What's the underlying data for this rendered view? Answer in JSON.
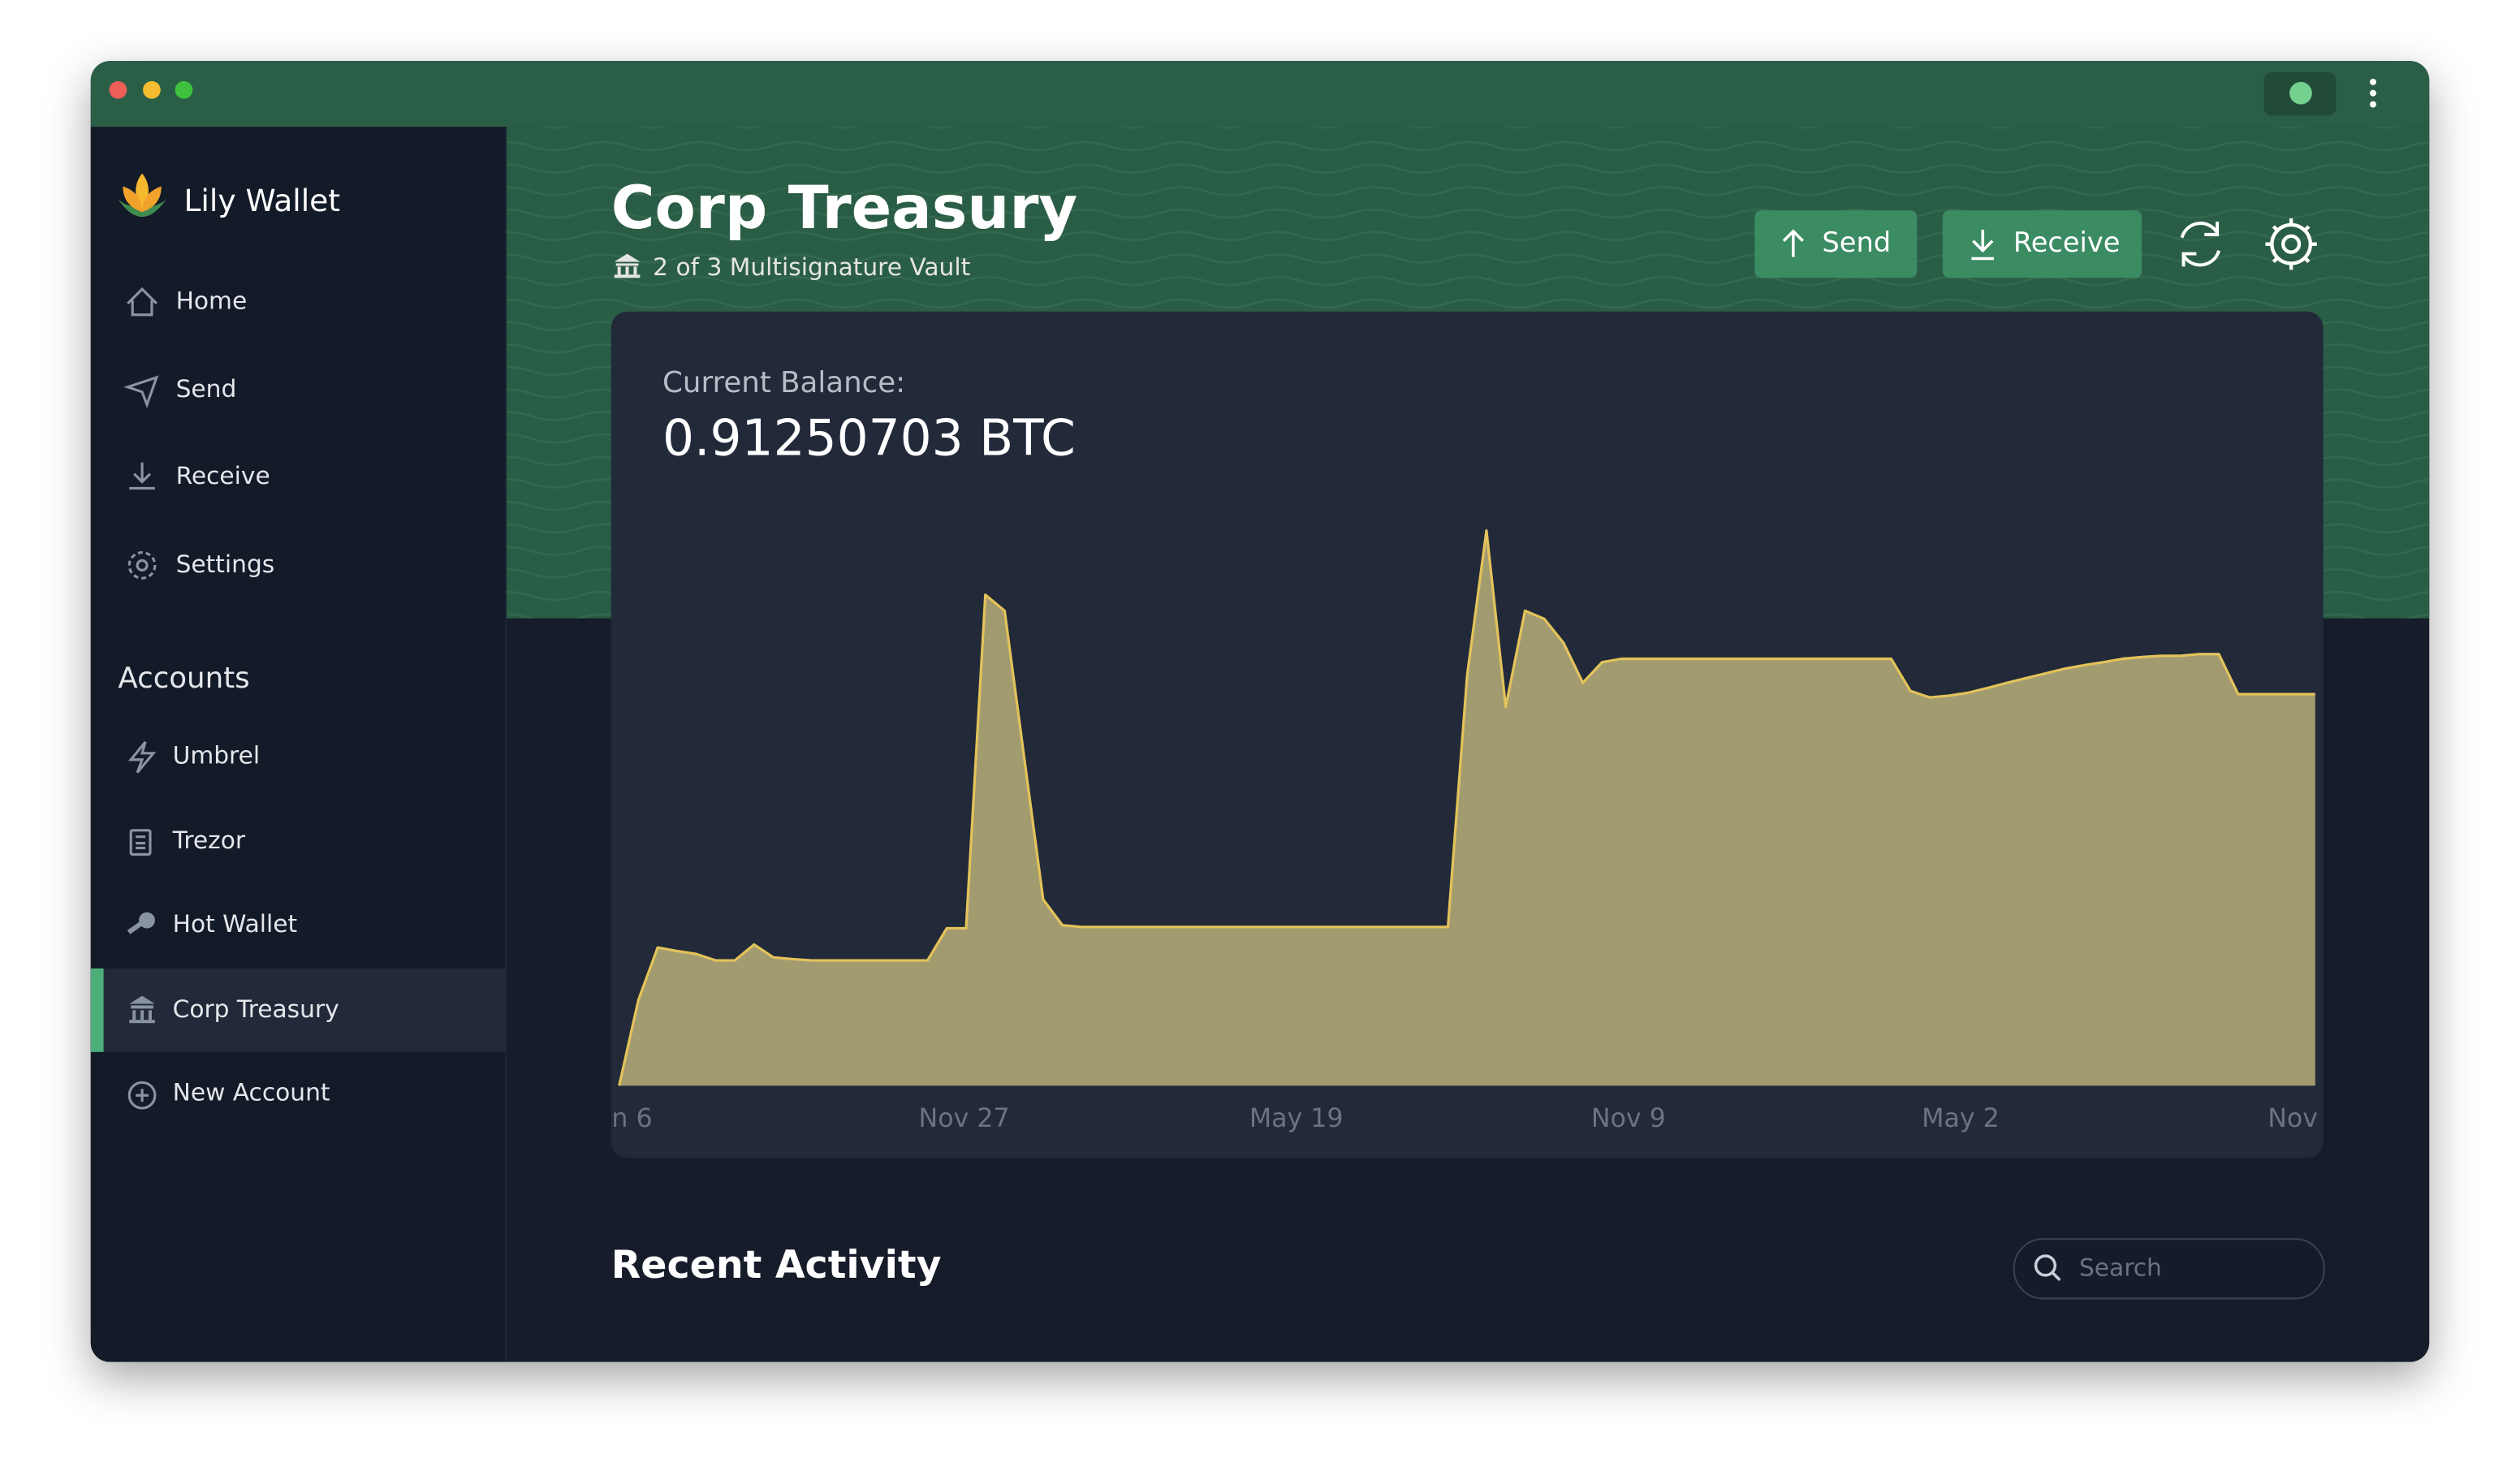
{
  "sidebar": {
    "brand": "Lily Wallet",
    "nav": [
      "Home",
      "Send",
      "Receive",
      "Settings"
    ],
    "accounts_heading": "Accounts",
    "accounts": [
      "Umbrel",
      "Trezor",
      "Hot Wallet",
      "Corp Treasury",
      "New Account"
    ]
  },
  "header": {
    "title": "Corp Treasury",
    "subtitle": "2 of 3 Multisignature Vault",
    "buttons": [
      "Send",
      "Receive"
    ]
  },
  "balance": {
    "label": "Current Balance:",
    "value": "0.91250703 BTC"
  },
  "chart_data": {
    "type": "area",
    "color": "#a39b70",
    "line_color": "#e3c35a",
    "ylim": [
      0,
      1.4
    ],
    "x_labels": [
      "n 6",
      "Nov 27",
      "May 19",
      "Nov 9",
      "May 2",
      "Nov"
    ],
    "values": [
      0,
      0.2,
      0.322,
      0.314,
      0.307,
      0.292,
      0.292,
      0.329,
      0.299,
      0.295,
      0.292,
      0.292,
      0.292,
      0.292,
      0.292,
      0.292,
      0.292,
      0.367,
      0.367,
      1.144,
      1.107,
      0.77,
      0.434,
      0.374,
      0.37,
      0.37,
      0.37,
      0.37,
      0.37,
      0.37,
      0.37,
      0.37,
      0.37,
      0.37,
      0.37,
      0.37,
      0.37,
      0.37,
      0.37,
      0.37,
      0.37,
      0.37,
      0.37,
      0.37,
      0.957,
      1.294,
      0.883,
      1.107,
      1.088,
      1.032,
      0.939,
      0.987,
      0.995,
      0.995,
      0.995,
      0.995,
      0.995,
      0.995,
      0.995,
      0.995,
      0.995,
      0.995,
      0.995,
      0.995,
      0.995,
      0.995,
      0.995,
      0.92,
      0.905,
      0.909,
      0.916,
      0.927,
      0.939,
      0.95,
      0.961,
      0.972,
      0.98,
      0.987,
      0.995,
      0.999,
      1.002,
      1.002,
      1.006,
      1.006,
      0.9125,
      0.9125,
      0.9125,
      0.9125,
      0.9125
    ]
  },
  "activity": {
    "title": "Recent Activity",
    "search_placeholder": "Search"
  }
}
